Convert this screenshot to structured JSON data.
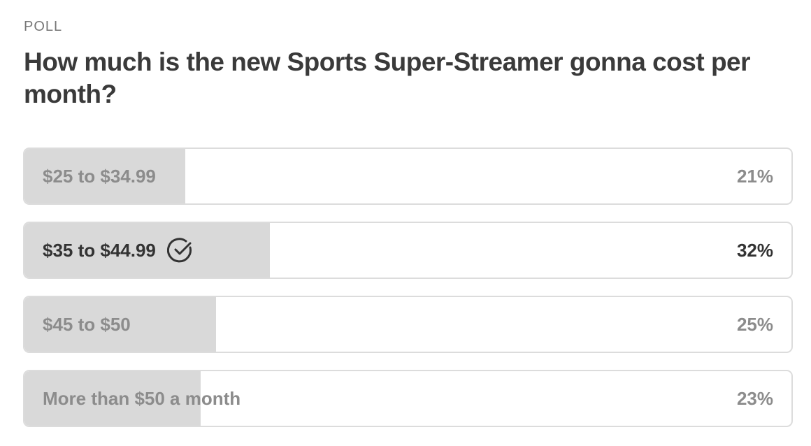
{
  "poll": {
    "kicker": "POLL",
    "question": "How much is the new Sports Super-Streamer gonna cost per month?",
    "options": [
      {
        "label": "$25 to $34.99",
        "value": 21,
        "value_label": "21%",
        "selected": false
      },
      {
        "label": "$35 to $44.99",
        "value": 32,
        "value_label": "32%",
        "selected": true
      },
      {
        "label": "$45 to $50",
        "value": 25,
        "value_label": "25%",
        "selected": false
      },
      {
        "label": "More than $50 a month",
        "value": 23,
        "value_label": "23%",
        "selected": false
      }
    ]
  }
}
